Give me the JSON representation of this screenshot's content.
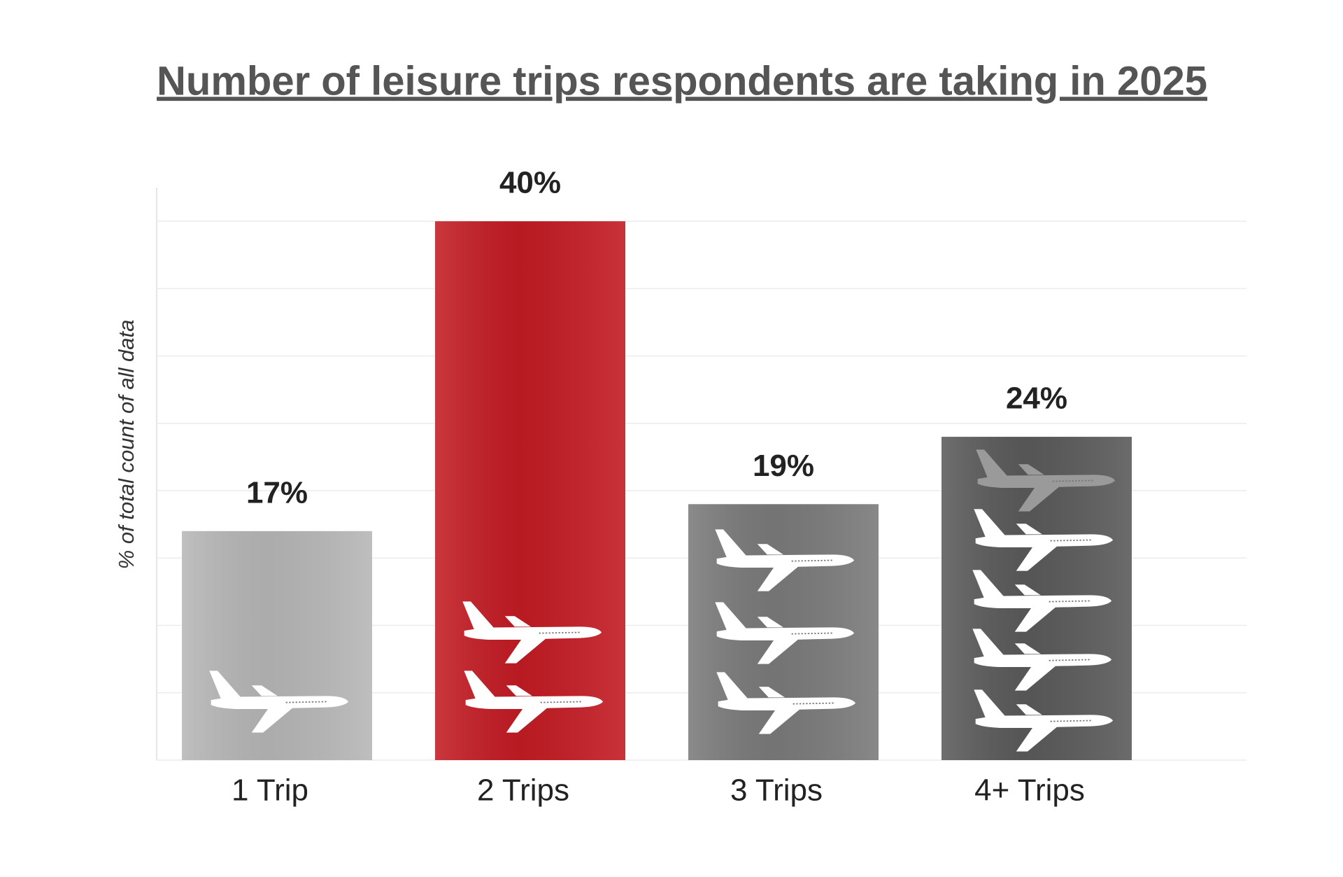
{
  "chart_data": {
    "type": "bar",
    "title": "Number of leisure trips respondents are taking in 2025",
    "y_label": "% of total count of all data",
    "categories": [
      "1 Trip",
      "2 Trips",
      "3 Trips",
      "4+ Trips"
    ],
    "values": [
      17,
      40,
      19,
      24
    ],
    "value_labels": [
      "17%",
      "40%",
      "19%",
      "24%"
    ],
    "colors": [
      "#b7b7b7",
      "#c41c24",
      "#7b7b7b",
      "#5b5b5b"
    ],
    "ylim": [
      0,
      42.5
    ],
    "yticks": [
      0,
      5,
      10,
      15,
      20,
      25,
      30,
      35,
      40
    ],
    "grid": true
  }
}
